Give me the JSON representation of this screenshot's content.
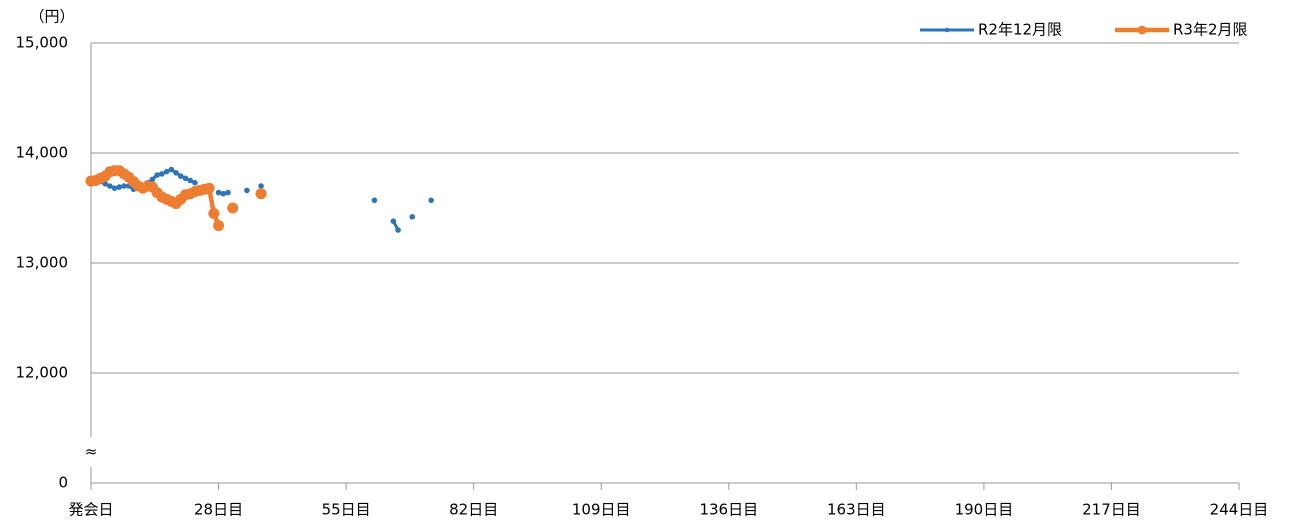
{
  "chart_data": {
    "type": "line",
    "y_unit_label": "（円）",
    "xlim": [
      1,
      244
    ],
    "xticks": [
      {
        "value": 1,
        "label": "発会日"
      },
      {
        "value": 28,
        "label": "28日目"
      },
      {
        "value": 55,
        "label": "55日目"
      },
      {
        "value": 82,
        "label": "82日目"
      },
      {
        "value": 109,
        "label": "109日目"
      },
      {
        "value": 136,
        "label": "136日目"
      },
      {
        "value": 163,
        "label": "163日目"
      },
      {
        "value": 190,
        "label": "190日目"
      },
      {
        "value": 217,
        "label": "217日目"
      },
      {
        "value": 244,
        "label": "244日目"
      }
    ],
    "ylim": [
      0,
      15000
    ],
    "yticks": [
      0,
      {
        "value": 12000,
        "label": "12,000"
      },
      {
        "value": 13000,
        "label": "13,000"
      },
      {
        "value": 14000,
        "label": "14,000"
      },
      {
        "value": 15000,
        "label": "15,000"
      }
    ],
    "axis_break": {
      "from": 0,
      "to": 11000,
      "label": "≈"
    },
    "grid": true,
    "legend": "top-right",
    "series": [
      {
        "name": "R2年12月限",
        "color": "#2e75b6",
        "x": [
          1,
          2,
          3,
          4,
          5,
          6,
          7,
          8,
          9,
          10,
          11,
          12,
          13,
          14,
          15,
          16,
          17,
          18,
          19,
          20,
          21,
          22,
          23,
          24,
          28,
          29,
          30,
          31,
          34,
          35,
          37,
          38,
          61,
          62,
          65,
          66,
          67,
          69,
          70,
          73
        ],
        "values": [
          13740,
          13750,
          13740,
          13720,
          13700,
          13680,
          13690,
          13700,
          13700,
          13670,
          13690,
          13700,
          13730,
          13760,
          13800,
          13810,
          13830,
          13850,
          13820,
          13790,
          13770,
          13750,
          13730,
          null,
          13640,
          13630,
          13640,
          null,
          13660,
          null,
          13700,
          null,
          13570,
          null,
          13380,
          13300,
          null,
          13420,
          null,
          13570
        ]
      },
      {
        "name": "R3年2月限",
        "color": "#ed7d31",
        "x": [
          1,
          2,
          3,
          4,
          5,
          6,
          7,
          8,
          9,
          10,
          11,
          12,
          13,
          14,
          15,
          16,
          17,
          18,
          19,
          20,
          21,
          22,
          23,
          24,
          25,
          26,
          27,
          28,
          29,
          31,
          32,
          37
        ],
        "values": [
          13745,
          13750,
          13770,
          13790,
          13830,
          13840,
          13840,
          13810,
          13780,
          13740,
          13700,
          13680,
          13700,
          13690,
          13640,
          13600,
          13580,
          13560,
          13540,
          13580,
          13620,
          13630,
          13650,
          13660,
          13670,
          13680,
          13450,
          13340,
          null,
          13500,
          null,
          13630
        ]
      }
    ]
  }
}
